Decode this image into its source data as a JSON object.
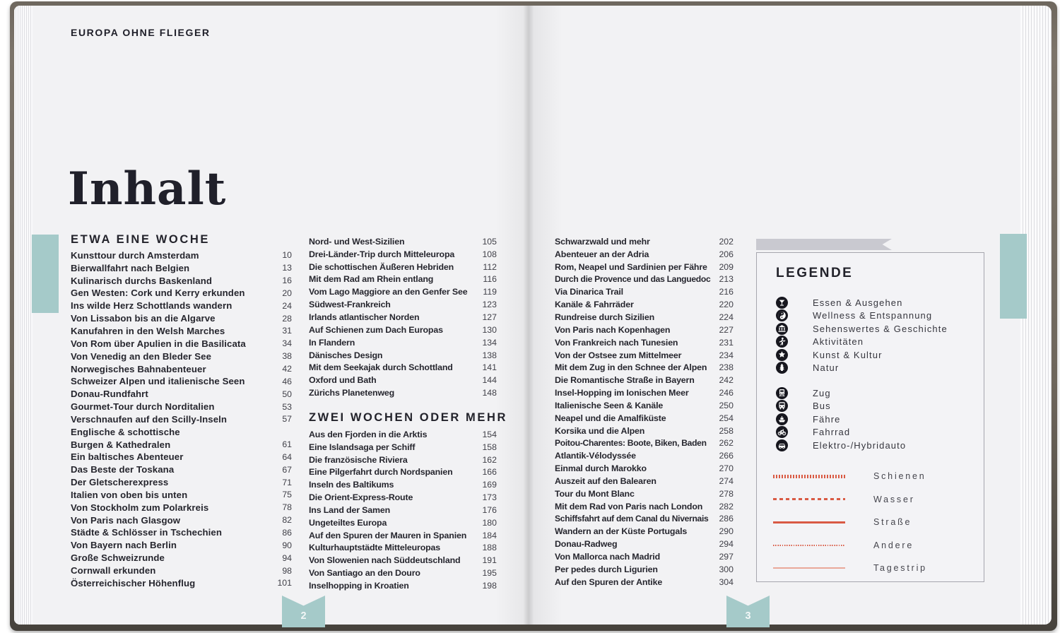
{
  "colors": {
    "accent_teal": "#a5cac9",
    "line_red": "#d95a44",
    "line_pink": "#e9a899",
    "ribbon_gray": "#c9c9d0"
  },
  "book": {
    "header": "EUROPA OHNE FLIEGER",
    "title": "Inhalt",
    "left_page_number": "2",
    "right_page_number": "3"
  },
  "toc": {
    "columns": [
      {
        "blocks": [
          {
            "heading": "ETWA EINE WOCHE",
            "entries": [
              {
                "title": "Kunsttour durch Amsterdam",
                "page": "10"
              },
              {
                "title": "Bierwallfahrt nach Belgien",
                "page": "13"
              },
              {
                "title": "Kulinarisch durchs Baskenland",
                "page": "16"
              },
              {
                "title": "Gen Westen: Cork und Kerry erkunden",
                "page": "20"
              },
              {
                "title": "Ins wilde Herz Schottlands wandern",
                "page": "24"
              },
              {
                "title": "Von Lissabon bis an die Algarve",
                "page": "28"
              },
              {
                "title": "Kanufahren in den Welsh Marches",
                "page": "31"
              },
              {
                "title": "Von Rom über Apulien in die Basilicata",
                "page": "34"
              },
              {
                "title": "Von Venedig an den Bleder See",
                "page": "38"
              },
              {
                "title": "Norwegisches Bahnabenteuer",
                "page": "42"
              },
              {
                "title": "Schweizer Alpen und italienische Seen",
                "page": "46"
              },
              {
                "title": "Donau-Rundfahrt",
                "page": "50"
              },
              {
                "title": "Gourmet-Tour durch Norditalien",
                "page": "53"
              },
              {
                "title": "Verschnaufen auf den Scilly-Inseln",
                "page": "57"
              },
              {
                "title": "Englische & schottische",
                "page": ""
              },
              {
                "title": "Burgen & Kathedralen",
                "page": "61"
              },
              {
                "title": "Ein baltisches Abenteuer",
                "page": "64"
              },
              {
                "title": "Das Beste der Toskana",
                "page": "67"
              },
              {
                "title": "Der Gletscherexpress",
                "page": "71"
              },
              {
                "title": "Italien von oben bis unten",
                "page": "75"
              },
              {
                "title": "Von Stockholm zum Polarkreis",
                "page": "78"
              },
              {
                "title": "Von Paris nach Glasgow",
                "page": "82"
              },
              {
                "title": "Städte & Schlösser in Tschechien",
                "page": "86"
              },
              {
                "title": "Von Bayern nach Berlin",
                "page": "90"
              },
              {
                "title": "Große Schweizrunde",
                "page": "94"
              },
              {
                "title": "Cornwall erkunden",
                "page": "98"
              },
              {
                "title": "Österreichischer Höhenflug",
                "page": "101"
              }
            ]
          }
        ]
      },
      {
        "blocks": [
          {
            "heading": null,
            "entries": [
              {
                "title": "Nord- und West-Sizilien",
                "page": "105"
              },
              {
                "title": "Drei-Länder-Trip durch Mitteleuropa",
                "page": "108"
              },
              {
                "title": "Die schottischen Äußeren Hebriden",
                "page": "112"
              },
              {
                "title": "Mit dem Rad am Rhein entlang",
                "page": "116"
              },
              {
                "title": "Vom Lago Maggiore an den Genfer See",
                "page": "119"
              },
              {
                "title": "Südwest-Frankreich",
                "page": "123"
              },
              {
                "title": "Irlands atlantischer Norden",
                "page": "127"
              },
              {
                "title": "Auf Schienen zum Dach Europas",
                "page": "130"
              },
              {
                "title": "In Flandern",
                "page": "134"
              },
              {
                "title": "Dänisches Design",
                "page": "138"
              },
              {
                "title": "Mit dem Seekajak durch Schottland",
                "page": "141"
              },
              {
                "title": "Oxford und Bath",
                "page": "144"
              },
              {
                "title": "Zürichs Planetenweg",
                "page": "148"
              }
            ]
          },
          {
            "heading": "ZWEI WOCHEN ODER MEHR",
            "entries": [
              {
                "title": "Aus den Fjorden in die Arktis",
                "page": "154"
              },
              {
                "title": "Eine Islandsaga per Schiff",
                "page": "158"
              },
              {
                "title": "Die französische Riviera",
                "page": "162"
              },
              {
                "title": "Eine Pilgerfahrt durch Nordspanien",
                "page": "166"
              },
              {
                "title": "Inseln des Baltikums",
                "page": "169"
              },
              {
                "title": "Die Orient-Express-Route",
                "page": "173"
              },
              {
                "title": "Ins Land der Samen",
                "page": "176"
              },
              {
                "title": "Ungeteiltes Europa",
                "page": "180"
              },
              {
                "title": "Auf den Spuren der Mauren in Spanien",
                "page": "184"
              },
              {
                "title": "Kulturhauptstädte Mitteleuropas",
                "page": "188"
              },
              {
                "title": "Von Slowenien nach Süddeutschland",
                "page": "191"
              },
              {
                "title": "Von Santiago an den Douro",
                "page": "195"
              },
              {
                "title": "Inselhopping in Kroatien",
                "page": "198"
              }
            ]
          }
        ]
      },
      {
        "blocks": [
          {
            "heading": null,
            "entries": [
              {
                "title": "Schwarzwald und mehr",
                "page": "202"
              },
              {
                "title": "Abenteuer an der Adria",
                "page": "206"
              },
              {
                "title": "Rom, Neapel und Sardinien per Fähre",
                "page": "209"
              },
              {
                "title": "Durch die Provence und das Languedoc",
                "page": "213"
              },
              {
                "title": "Via Dinarica Trail",
                "page": "216"
              },
              {
                "title": "Kanäle & Fahrräder",
                "page": "220"
              },
              {
                "title": "Rundreise durch Sizilien",
                "page": "224"
              },
              {
                "title": "Von Paris nach Kopenhagen",
                "page": "227"
              },
              {
                "title": "Von Frankreich nach Tunesien",
                "page": "231"
              },
              {
                "title": "Von der Ostsee zum Mittelmeer",
                "page": "234"
              },
              {
                "title": "Mit dem Zug in den Schnee der Alpen",
                "page": "238"
              },
              {
                "title": "Die Romantische Straße in Bayern",
                "page": "242"
              },
              {
                "title": "Insel-Hopping im Ionischen Meer",
                "page": "246"
              },
              {
                "title": "Italienische Seen & Kanäle",
                "page": "250"
              },
              {
                "title": "Neapel und die Amalfiküste",
                "page": "254"
              },
              {
                "title": "Korsika und die Alpen",
                "page": "258"
              },
              {
                "title": "Poitou-Charentes: Boote, Biken, Baden",
                "page": "262"
              },
              {
                "title": "Atlantik-Vélodyssée",
                "page": "266"
              },
              {
                "title": "Einmal durch Marokko",
                "page": "270"
              },
              {
                "title": "Auszeit auf den Balearen",
                "page": "274"
              },
              {
                "title": "Tour du Mont Blanc",
                "page": "278"
              },
              {
                "title": "Mit dem Rad von Paris nach London",
                "page": "282"
              },
              {
                "title": "Schiffsfahrt auf dem Canal du Nivernais",
                "page": "286"
              },
              {
                "title": "Wandern an der Küste Portugals",
                "page": "290"
              },
              {
                "title": "Donau-Radweg",
                "page": "294"
              },
              {
                "title": "Von Mallorca nach Madrid",
                "page": "297"
              },
              {
                "title": "Per pedes durch Ligurien",
                "page": "300"
              },
              {
                "title": "Auf den Spuren der Antike",
                "page": "304"
              }
            ]
          }
        ]
      }
    ]
  },
  "legend": {
    "title": "LEGENDE",
    "categories": [
      {
        "icon": "cocktail-icon",
        "label": "Essen & Ausgehen"
      },
      {
        "icon": "yinyang-icon",
        "label": "Wellness & Entspannung"
      },
      {
        "icon": "museum-icon",
        "label": "Sehenswertes & Geschichte"
      },
      {
        "icon": "hiker-icon",
        "label": "Aktivitäten"
      },
      {
        "icon": "star-icon",
        "label": "Kunst & Kultur"
      },
      {
        "icon": "tree-icon",
        "label": "Natur"
      }
    ],
    "transport": [
      {
        "icon": "train-icon",
        "label": "Zug"
      },
      {
        "icon": "bus-icon",
        "label": "Bus"
      },
      {
        "icon": "ferry-icon",
        "label": "Fähre"
      },
      {
        "icon": "bike-icon",
        "label": "Fahrrad"
      },
      {
        "icon": "car-icon",
        "label": "Elektro-/Hybridauto"
      }
    ],
    "lines": [
      {
        "style": "schienen",
        "label": "Schienen"
      },
      {
        "style": "wasser",
        "label": "Wasser"
      },
      {
        "style": "strasse",
        "label": "Straße"
      },
      {
        "style": "andere",
        "label": "Andere"
      },
      {
        "style": "tagestrip",
        "label": "Tagestrip"
      }
    ]
  }
}
